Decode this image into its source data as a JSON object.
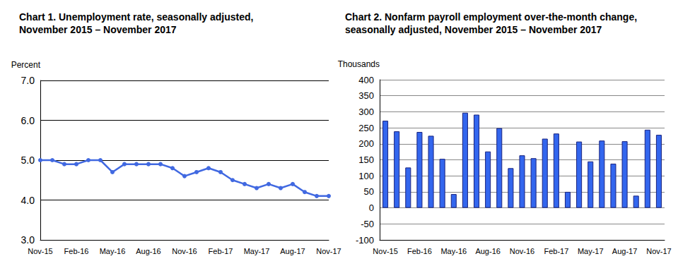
{
  "chart_data": [
    {
      "type": "line",
      "title": "Chart 1. Unemployment rate, seasonally adjusted,\nNovember 2015 – November 2017",
      "y_label": "Percent",
      "categories": [
        "Nov-15",
        null,
        null,
        "Feb-16",
        null,
        null,
        "May-16",
        null,
        null,
        "Aug-16",
        null,
        null,
        "Nov-16",
        null,
        null,
        "Feb-17",
        null,
        null,
        "May-17",
        null,
        null,
        "Aug-17",
        null,
        null,
        "Nov-17"
      ],
      "values": [
        5.0,
        5.0,
        4.9,
        4.9,
        5.0,
        5.0,
        4.7,
        4.9,
        4.9,
        4.9,
        4.9,
        4.8,
        4.6,
        4.7,
        4.8,
        4.7,
        4.5,
        4.4,
        4.3,
        4.4,
        4.3,
        4.4,
        4.2,
        4.1,
        4.1
      ],
      "color": "#4169e1",
      "marker": "circle",
      "ylim": [
        3,
        7
      ],
      "yticks": [
        {
          "value": 3,
          "label": "3.0"
        },
        {
          "value": 4,
          "label": "4.0"
        },
        {
          "value": 5,
          "label": "5.0"
        },
        {
          "value": 6,
          "label": "6.0"
        },
        {
          "value": 7,
          "label": "7.0"
        }
      ],
      "grid": true
    },
    {
      "type": "bar",
      "title": "Chart 2. Nonfarm payroll employment over-the-month change,\nseasonally adjusted, November 2015 – November 2017",
      "y_label": "Thousands",
      "categories": [
        "Nov-15",
        null,
        null,
        "Feb-16",
        null,
        null,
        "May-16",
        null,
        null,
        "Aug-16",
        null,
        null,
        "Nov-16",
        null,
        null,
        "Feb-17",
        null,
        null,
        "May-17",
        null,
        null,
        "Aug-17",
        null,
        null,
        "Nov-17"
      ],
      "values": [
        272,
        239,
        126,
        237,
        225,
        153,
        43,
        297,
        291,
        176,
        249,
        124,
        164,
        155,
        216,
        232,
        50,
        207,
        145,
        210,
        138,
        208,
        38,
        244,
        228
      ],
      "color": "#3366ee",
      "ylim": [
        -100,
        400
      ],
      "yticks": [
        -100,
        -50,
        0,
        50,
        100,
        150,
        200,
        250,
        300,
        350,
        400
      ],
      "grid": true
    }
  ]
}
